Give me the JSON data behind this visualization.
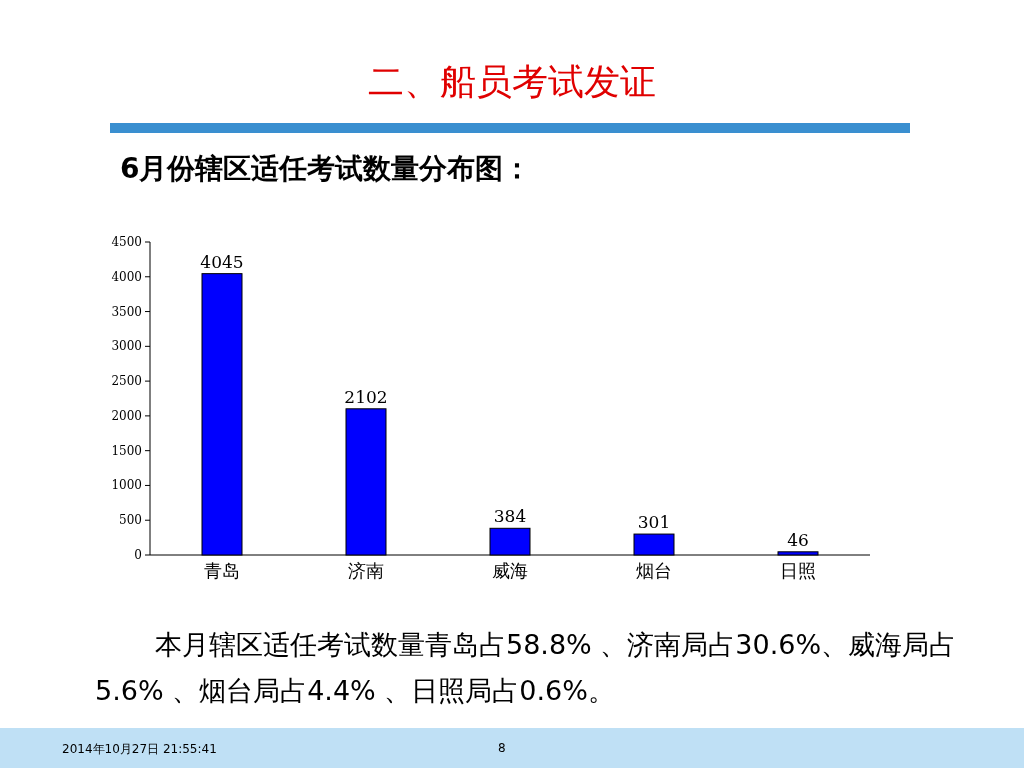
{
  "chart_data": {
    "type": "bar",
    "title": "二、船员考试发证",
    "subtitle": "6月份辖区适任考试数量分布图：",
    "categories": [
      "青岛",
      "济南",
      "威海",
      "烟台",
      "日照"
    ],
    "values": [
      4045,
      2102,
      384,
      301,
      46
    ],
    "color": "#0000ff",
    "ylim": [
      0,
      4500
    ],
    "yticks": [
      0,
      500,
      1000,
      1500,
      2000,
      2500,
      3000,
      3500,
      4000,
      4500
    ],
    "data_labels": true,
    "grid": false,
    "annotations": [
      "本月辖区适任考试数量青岛占58.8% 、济南局占30.6%、威海局占5.6% 、烟台局占4.4% 、日照局占0.6%。",
      "2014年10月27日  21:55:41",
      "8"
    ]
  }
}
